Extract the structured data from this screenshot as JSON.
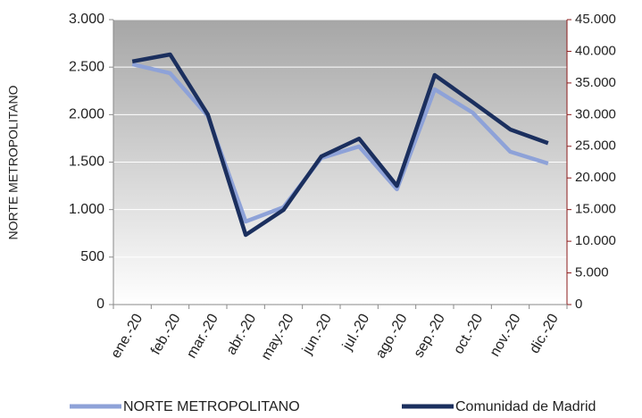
{
  "chart_data": {
    "type": "line",
    "y_label": "NORTE METROPOLITANO",
    "categories": [
      "ene.-20",
      "feb.-20",
      "mar.-20",
      "abr.-20",
      "may.-20",
      "jun.-20",
      "jul.-20",
      "ago.-20",
      "sep.-20",
      "oct.-20",
      "nov.-20",
      "dic.-20"
    ],
    "series": [
      {
        "name": "NORTE METROPOLITANO",
        "color": "#8ea2d8",
        "values": [
          2530,
          2436,
          1985,
          875,
          1025,
          1543,
          1665,
          1214,
          2267,
          2022,
          1609,
          1486
        ]
      },
      {
        "name": "Comunidad de Madrid",
        "color": "#1b2f5e",
        "axis": "y2",
        "values": [
          38400,
          39500,
          30000,
          11000,
          14950,
          23400,
          26200,
          18750,
          36250,
          32000,
          27650,
          25500
        ]
      }
    ],
    "ylim": [
      0,
      3000
    ],
    "yticks": [
      0,
      500,
      {
        "value": 1000,
        "label": "1.000"
      },
      {
        "value": 1500,
        "label": "1.500"
      },
      {
        "value": 2000,
        "label": "2.000"
      },
      {
        "value": 2500,
        "label": "2.500"
      },
      {
        "value": 3000,
        "label": "3.000"
      }
    ],
    "y2lim": [
      0,
      45000
    ],
    "y2ticks": [
      0,
      {
        "value": 5000,
        "label": "5.000"
      },
      {
        "value": 10000,
        "label": "10.000"
      },
      {
        "value": 15000,
        "label": "15.000"
      },
      {
        "value": 20000,
        "label": "20.000"
      },
      {
        "value": 25000,
        "label": "25.000"
      },
      {
        "value": 30000,
        "label": "30.000"
      },
      {
        "value": 35000,
        "label": "35.000"
      },
      {
        "value": 40000,
        "label": "40.000"
      },
      {
        "value": 45000,
        "label": "45.000"
      }
    ],
    "y2_color": "#8b1a1a",
    "grid": true,
    "legend": "bottom"
  }
}
